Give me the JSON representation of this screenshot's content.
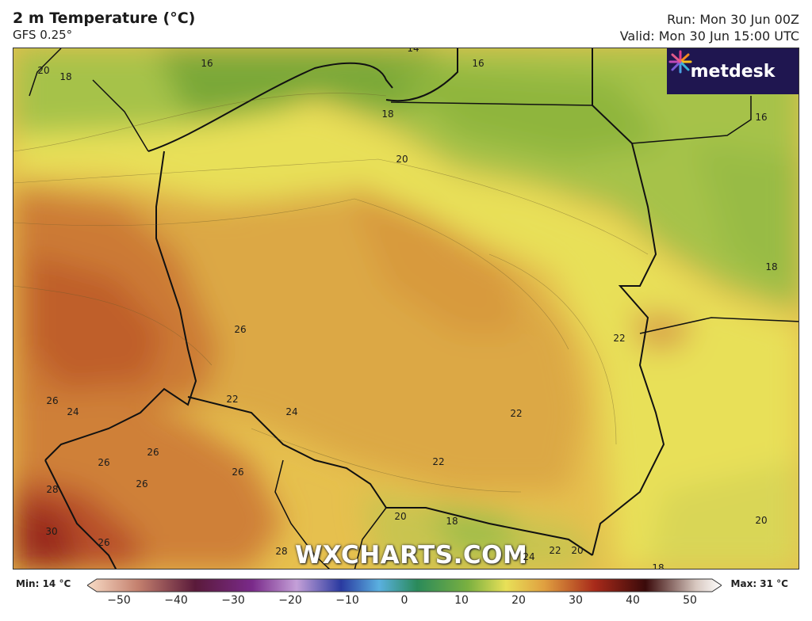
{
  "header": {
    "title": "2 m Temperature (°C)",
    "model": "GFS 0.25°",
    "run": "Run: Mon 30 Jun 00Z",
    "valid": "Valid: Mon 30 Jun 15:00 UTC"
  },
  "brand": {
    "logo_text": "metdesk",
    "watermark": "WXCHARTS.COM",
    "logo_bg": "#1f1650"
  },
  "legend": {
    "min_label": "Min: 14 °C",
    "max_label": "Max: 31 °C",
    "ticks": [
      "−50",
      "−40",
      "−30",
      "−20",
      "−10",
      "0",
      "10",
      "20",
      "30",
      "40",
      "50"
    ]
  },
  "contour_labels": [
    {
      "text": "16",
      "id": "l1"
    },
    {
      "text": "20",
      "id": "l2"
    },
    {
      "text": "18",
      "id": "l3"
    },
    {
      "text": "14",
      "id": "l4"
    },
    {
      "text": "16",
      "id": "l5"
    },
    {
      "text": "18",
      "id": "l6"
    },
    {
      "text": "16",
      "id": "l7"
    },
    {
      "text": "20",
      "id": "l8"
    },
    {
      "text": "18",
      "id": "l9"
    },
    {
      "text": "26",
      "id": "l10"
    },
    {
      "text": "22",
      "id": "l11"
    },
    {
      "text": "22",
      "id": "l12"
    },
    {
      "text": "22",
      "id": "l13"
    },
    {
      "text": "24",
      "id": "l14"
    },
    {
      "text": "26",
      "id": "l15"
    },
    {
      "text": "24",
      "id": "l16"
    },
    {
      "text": "26",
      "id": "l17"
    },
    {
      "text": "26",
      "id": "l18"
    },
    {
      "text": "26",
      "id": "l19"
    },
    {
      "text": "26",
      "id": "l20"
    },
    {
      "text": "28",
      "id": "l21"
    },
    {
      "text": "30",
      "id": "l22"
    },
    {
      "text": "26",
      "id": "l23"
    },
    {
      "text": "28",
      "id": "l24"
    },
    {
      "text": "22",
      "id": "l25"
    },
    {
      "text": "20",
      "id": "l26"
    },
    {
      "text": "18",
      "id": "l27"
    },
    {
      "text": "24",
      "id": "l28"
    },
    {
      "text": "22",
      "id": "l29"
    },
    {
      "text": "20",
      "id": "l30"
    },
    {
      "text": "18",
      "id": "l31"
    },
    {
      "text": "20",
      "id": "l32"
    }
  ]
}
